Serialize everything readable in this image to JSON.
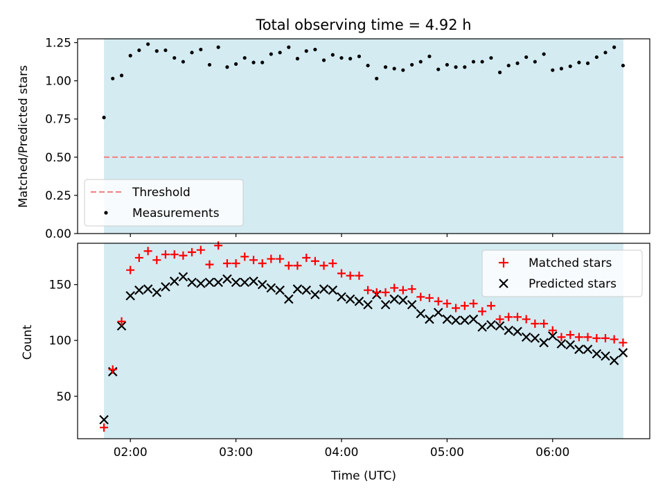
{
  "chart_data": [
    {
      "type": "scatter",
      "title": "Total observing time = 4.92 h",
      "ylabel": "Matched/Predicted stars",
      "xlabel": "",
      "ylim": [
        0.0,
        1.275
      ],
      "y_ticks": [
        0.0,
        0.25,
        0.5,
        0.75,
        1.0,
        1.25
      ],
      "y_tick_labels": [
        "0.00",
        "0.25",
        "0.50",
        "0.75",
        "1.00",
        "1.25"
      ],
      "x_unit": "hours UTC",
      "xlim": [
        1.5,
        6.92
      ],
      "x_ticks": [
        2,
        3,
        4,
        5,
        6
      ],
      "shaded_span": [
        1.75,
        6.67
      ],
      "shade_color": "#add8e6",
      "legend": {
        "position": "lower-left",
        "entries": [
          {
            "label": "Threshold",
            "style": "dashed-line",
            "color": "#f07f7f"
          },
          {
            "label": "Measurements",
            "style": "dot",
            "color": "#000000"
          }
        ]
      },
      "threshold": 0.5,
      "series": [
        {
          "name": "Measurements",
          "x": [
            1.75,
            1.833,
            1.917,
            2.0,
            2.083,
            2.167,
            2.25,
            2.333,
            2.417,
            2.5,
            2.583,
            2.667,
            2.75,
            2.833,
            2.917,
            3.0,
            3.083,
            3.167,
            3.25,
            3.333,
            3.417,
            3.5,
            3.583,
            3.667,
            3.75,
            3.833,
            3.917,
            4.0,
            4.083,
            4.167,
            4.25,
            4.333,
            4.417,
            4.5,
            4.583,
            4.667,
            4.75,
            4.833,
            4.917,
            5.0,
            5.083,
            5.167,
            5.25,
            5.333,
            5.417,
            5.5,
            5.583,
            5.667,
            5.75,
            5.833,
            5.917,
            6.0,
            6.083,
            6.167,
            6.25,
            6.333,
            6.417,
            6.5,
            6.583,
            6.667
          ],
          "y": [
            0.76,
            1.015,
            1.035,
            1.165,
            1.2,
            1.24,
            1.195,
            1.2,
            1.15,
            1.125,
            1.185,
            1.205,
            1.105,
            1.22,
            1.09,
            1.11,
            1.15,
            1.12,
            1.12,
            1.175,
            1.185,
            1.22,
            1.145,
            1.195,
            1.205,
            1.135,
            1.17,
            1.15,
            1.145,
            1.16,
            1.1,
            1.015,
            1.09,
            1.08,
            1.07,
            1.105,
            1.125,
            1.16,
            1.075,
            1.105,
            1.09,
            1.09,
            1.125,
            1.125,
            1.15,
            1.055,
            1.1,
            1.115,
            1.155,
            1.125,
            1.175,
            1.07,
            1.08,
            1.095,
            1.12,
            1.115,
            1.155,
            1.185,
            1.22,
            1.1
          ]
        }
      ]
    },
    {
      "type": "scatter",
      "title": "",
      "ylabel": "Count",
      "xlabel": "Time (UTC)",
      "ylim": [
        12,
        187
      ],
      "y_ticks": [
        50,
        100,
        150
      ],
      "y_tick_labels": [
        "50",
        "100",
        "150"
      ],
      "x_unit": "hours UTC",
      "xlim": [
        1.5,
        6.92
      ],
      "x_ticks": [
        2,
        3,
        4,
        5,
        6
      ],
      "x_tick_labels": [
        "02:00",
        "03:00",
        "04:00",
        "05:00",
        "06:00"
      ],
      "shaded_span": [
        1.75,
        6.67
      ],
      "shade_color": "#add8e6",
      "legend": {
        "position": "top-right",
        "entries": [
          {
            "label": "Matched stars",
            "style": "plus",
            "color": "#ff0000"
          },
          {
            "label": "Predicted stars",
            "style": "x",
            "color": "#000000"
          }
        ]
      },
      "series": [
        {
          "name": "Matched stars",
          "color": "#ff0000",
          "marker": "plus",
          "x": [
            1.75,
            1.833,
            1.917,
            2.0,
            2.083,
            2.167,
            2.25,
            2.333,
            2.417,
            2.5,
            2.583,
            2.667,
            2.75,
            2.833,
            2.917,
            3.0,
            3.083,
            3.167,
            3.25,
            3.333,
            3.417,
            3.5,
            3.583,
            3.667,
            3.75,
            3.833,
            3.917,
            4.0,
            4.083,
            4.167,
            4.25,
            4.333,
            4.417,
            4.5,
            4.583,
            4.667,
            4.75,
            4.833,
            4.917,
            5.0,
            5.083,
            5.167,
            5.25,
            5.333,
            5.417,
            5.5,
            5.583,
            5.667,
            5.75,
            5.833,
            5.917,
            6.0,
            6.083,
            6.167,
            6.25,
            6.333,
            6.417,
            6.5,
            6.583,
            6.667
          ],
          "y": [
            22,
            74,
            117,
            163,
            174,
            180,
            172,
            177,
            177,
            176,
            179,
            181,
            168,
            185,
            169,
            169,
            175,
            172,
            169,
            173,
            173,
            167,
            167,
            174,
            171,
            167,
            169,
            160,
            158,
            158,
            145,
            143,
            143,
            147,
            145,
            146,
            139,
            138,
            135,
            133,
            129,
            131,
            133,
            126,
            131,
            119,
            121,
            121,
            119,
            115,
            115,
            109,
            103,
            105,
            103,
            103,
            102,
            102,
            101,
            98
          ]
        },
        {
          "name": "Predicted stars",
          "color": "#000000",
          "marker": "x",
          "x": [
            1.75,
            1.833,
            1.917,
            2.0,
            2.083,
            2.167,
            2.25,
            2.333,
            2.417,
            2.5,
            2.583,
            2.667,
            2.75,
            2.833,
            2.917,
            3.0,
            3.083,
            3.167,
            3.25,
            3.333,
            3.417,
            3.5,
            3.583,
            3.667,
            3.75,
            3.833,
            3.917,
            4.0,
            4.083,
            4.167,
            4.25,
            4.333,
            4.417,
            4.5,
            4.583,
            4.667,
            4.75,
            4.833,
            4.917,
            5.0,
            5.083,
            5.167,
            5.25,
            5.333,
            5.417,
            5.5,
            5.583,
            5.667,
            5.75,
            5.833,
            5.917,
            6.0,
            6.083,
            6.167,
            6.25,
            6.333,
            6.417,
            6.5,
            6.583,
            6.667
          ],
          "y": [
            29,
            72,
            113,
            140,
            145,
            146,
            143,
            148,
            153,
            157,
            152,
            151,
            152,
            152,
            155,
            152,
            152,
            153,
            150,
            147,
            145,
            137,
            146,
            145,
            141,
            146,
            145,
            139,
            137,
            135,
            132,
            141,
            132,
            137,
            136,
            132,
            124,
            119,
            125,
            119,
            118,
            118,
            119,
            112,
            114,
            113,
            109,
            108,
            103,
            102,
            98,
            104,
            97,
            96,
            92,
            92,
            88,
            86,
            82,
            89
          ]
        }
      ]
    }
  ]
}
